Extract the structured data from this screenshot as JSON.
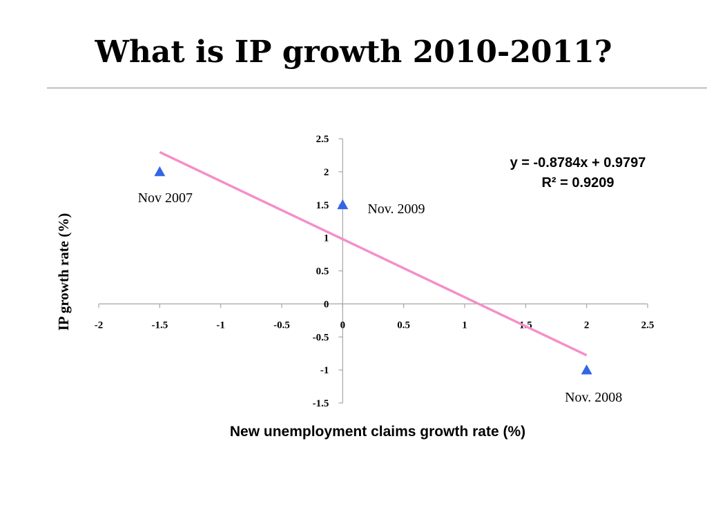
{
  "page": {
    "title": "What is IP growth 2010-2011?"
  },
  "chart_data": {
    "type": "scatter",
    "title": "What is IP growth 2010-2011?",
    "xlabel": "New unemployment claims growth rate (%)",
    "ylabel": "IP growth rate (%)",
    "xlim": [
      -2,
      2.5
    ],
    "ylim": [
      -1.5,
      2.5
    ],
    "x_ticks": [
      -2,
      -1.5,
      -1,
      -0.5,
      0,
      0.5,
      1,
      1.5,
      2,
      2.5
    ],
    "y_ticks": [
      -1.5,
      -1,
      -0.5,
      0,
      0.5,
      1,
      1.5,
      2,
      2.5
    ],
    "grid": false,
    "legend": "none",
    "marker_color": "#3366e6",
    "trendline_color": "#f48fc9",
    "points": [
      {
        "x": -1.5,
        "y": 2.0,
        "label": "Nov 2007"
      },
      {
        "x": 0,
        "y": 1.5,
        "label": "Nov. 2009"
      },
      {
        "x": 2,
        "y": -1.0,
        "label": "Nov. 2008"
      }
    ],
    "trendline": {
      "slope": -0.8784,
      "intercept": 0.9797,
      "x_range": [
        -1.5,
        2
      ],
      "equation": "y = -0.8784x + 0.9797",
      "r_squared": "R² = 0.9209"
    }
  }
}
